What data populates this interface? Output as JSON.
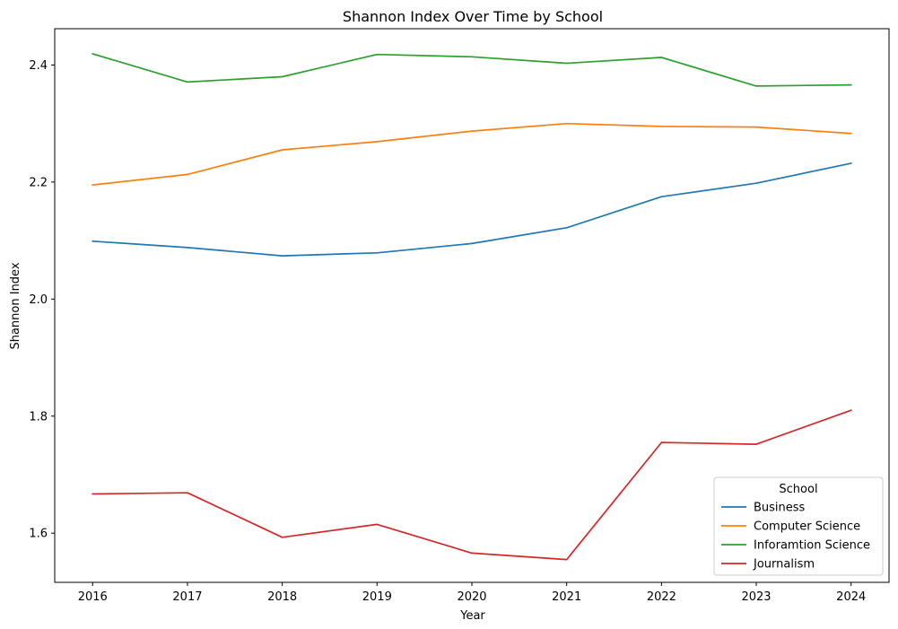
{
  "chart_data": {
    "type": "line",
    "title": "Shannon Index Over Time by School",
    "xlabel": "Year",
    "ylabel": "Shannon Index",
    "x": [
      2016,
      2017,
      2018,
      2019,
      2020,
      2021,
      2022,
      2023,
      2024
    ],
    "x_ticks": [
      "2016",
      "2017",
      "2018",
      "2019",
      "2020",
      "2021",
      "2022",
      "2023",
      "2024"
    ],
    "xlim": [
      2015.6,
      2024.4
    ],
    "y_ticks": [
      "1.6",
      "1.8",
      "2.0",
      "2.2",
      "2.4"
    ],
    "ylim": [
      1.516,
      2.462
    ],
    "grid": false,
    "legend": {
      "title": "School",
      "placement": "lower-right"
    },
    "series": [
      {
        "name": "Business",
        "color": "#1f77b4",
        "values": [
          2.099,
          2.088,
          2.074,
          2.079,
          2.095,
          2.122,
          2.175,
          2.198,
          2.232
        ]
      },
      {
        "name": "Computer Science",
        "color": "#ff7f0e",
        "values": [
          2.195,
          2.213,
          2.255,
          2.269,
          2.287,
          2.3,
          2.295,
          2.294,
          2.283
        ]
      },
      {
        "name": "Inforamtion Science",
        "color": "#2ca02c",
        "values": [
          2.419,
          2.371,
          2.38,
          2.418,
          2.414,
          2.403,
          2.413,
          2.364,
          2.366
        ]
      },
      {
        "name": "Journalism",
        "color": "#d62728",
        "values": [
          1.667,
          1.669,
          1.593,
          1.615,
          1.566,
          1.555,
          1.755,
          1.752,
          1.81
        ]
      }
    ]
  }
}
